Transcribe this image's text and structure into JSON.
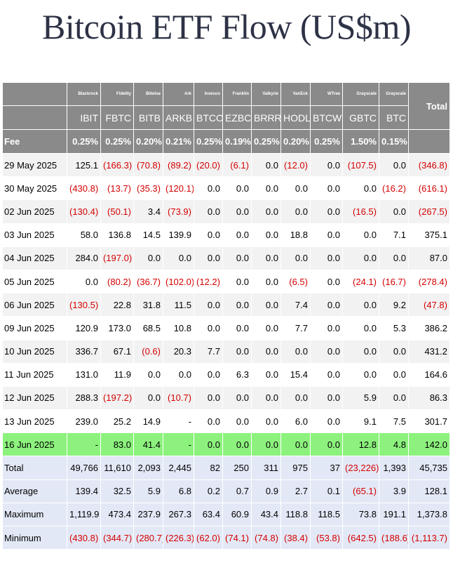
{
  "title": "Bitcoin ETF Flow (US$m)",
  "chart_data": {
    "type": "table",
    "title": "Bitcoin ETF Flow (US$m)",
    "issuers": [
      "Blackrock",
      "Fidelity",
      "Bitwise",
      "Ark",
      "Invesco",
      "Franklin",
      "Valkyrie",
      "VanEck",
      "WTree",
      "Grayscale",
      "Grayscale"
    ],
    "total_header": "Total",
    "tickers": [
      "IBIT",
      "FBTC",
      "BITB",
      "ARKB",
      "BTCO",
      "EZBC",
      "BRRR",
      "HODL",
      "BTCW",
      "GBTC",
      "BTC"
    ],
    "fee_label": "Fee",
    "fees": [
      "0.25%",
      "0.25%",
      "0.20%",
      "0.21%",
      "0.25%",
      "0.19%",
      "0.25%",
      "0.20%",
      "0.25%",
      "1.50%",
      "0.15%"
    ],
    "fee_total": "",
    "rows": [
      {
        "date": "29 May 2025",
        "values": [
          "125.1",
          "(166.3)",
          "(70.8)",
          "(89.2)",
          "(20.0)",
          "(6.1)",
          "0.0",
          "(12.0)",
          "0.0",
          "(107.5)",
          "0.0",
          "(346.8)"
        ]
      },
      {
        "date": "30 May 2025",
        "values": [
          "(430.8)",
          "(13.7)",
          "(35.3)",
          "(120.1)",
          "0.0",
          "0.0",
          "0.0",
          "0.0",
          "0.0",
          "0.0",
          "(16.2)",
          "(616.1)"
        ]
      },
      {
        "date": "02 Jun 2025",
        "values": [
          "(130.4)",
          "(50.1)",
          "3.4",
          "(73.9)",
          "0.0",
          "0.0",
          "0.0",
          "0.0",
          "0.0",
          "(16.5)",
          "0.0",
          "(267.5)"
        ]
      },
      {
        "date": "03 Jun 2025",
        "values": [
          "58.0",
          "136.8",
          "14.5",
          "139.9",
          "0.0",
          "0.0",
          "0.0",
          "18.8",
          "0.0",
          "0.0",
          "7.1",
          "375.1"
        ]
      },
      {
        "date": "04 Jun 2025",
        "values": [
          "284.0",
          "(197.0)",
          "0.0",
          "0.0",
          "0.0",
          "0.0",
          "0.0",
          "0.0",
          "0.0",
          "0.0",
          "0.0",
          "87.0"
        ]
      },
      {
        "date": "05 Jun 2025",
        "values": [
          "0.0",
          "(80.2)",
          "(36.7)",
          "(102.0)",
          "(12.2)",
          "0.0",
          "0.0",
          "(6.5)",
          "0.0",
          "(24.1)",
          "(16.7)",
          "(278.4)"
        ]
      },
      {
        "date": "06 Jun 2025",
        "values": [
          "(130.5)",
          "22.8",
          "31.8",
          "11.5",
          "0.0",
          "0.0",
          "0.0",
          "7.4",
          "0.0",
          "0.0",
          "9.2",
          "(47.8)"
        ]
      },
      {
        "date": "09 Jun 2025",
        "values": [
          "120.9",
          "173.0",
          "68.5",
          "10.8",
          "0.0",
          "0.0",
          "0.0",
          "7.7",
          "0.0",
          "0.0",
          "5.3",
          "386.2"
        ]
      },
      {
        "date": "10 Jun 2025",
        "values": [
          "336.7",
          "67.1",
          "(0.6)",
          "20.3",
          "7.7",
          "0.0",
          "0.0",
          "0.0",
          "0.0",
          "0.0",
          "0.0",
          "431.2"
        ]
      },
      {
        "date": "11 Jun 2025",
        "values": [
          "131.0",
          "11.9",
          "0.0",
          "0.0",
          "0.0",
          "6.3",
          "0.0",
          "15.4",
          "0.0",
          "0.0",
          "0.0",
          "164.6"
        ]
      },
      {
        "date": "12 Jun 2025",
        "values": [
          "288.3",
          "(197.2)",
          "0.0",
          "(10.7)",
          "0.0",
          "0.0",
          "0.0",
          "0.0",
          "0.0",
          "5.9",
          "0.0",
          "86.3"
        ]
      },
      {
        "date": "13 Jun 2025",
        "values": [
          "239.0",
          "25.2",
          "14.9",
          "-",
          "0.0",
          "0.0",
          "0.0",
          "6.0",
          "0.0",
          "9.1",
          "7.5",
          "301.7"
        ]
      },
      {
        "date": "16 Jun 2025",
        "values": [
          "-",
          "83.0",
          "41.4",
          "-",
          "0.0",
          "0.0",
          "0.0",
          "0.0",
          "0.0",
          "12.8",
          "4.8",
          "142.0"
        ],
        "highlight": true
      }
    ],
    "summary": [
      {
        "label": "Total",
        "values": [
          "49,766",
          "11,610",
          "2,093",
          "2,445",
          "82",
          "250",
          "311",
          "975",
          "37",
          "(23,226)",
          "1,393",
          "45,735"
        ]
      },
      {
        "label": "Average",
        "values": [
          "139.4",
          "32.5",
          "5.9",
          "6.8",
          "0.2",
          "0.7",
          "0.9",
          "2.7",
          "0.1",
          "(65.1)",
          "3.9",
          "128.1"
        ]
      },
      {
        "label": "Maximum",
        "values": [
          "1,119.9",
          "473.4",
          "237.9",
          "267.3",
          "63.4",
          "60.9",
          "43.4",
          "118.8",
          "118.5",
          "73.8",
          "191.1",
          "1,373.8"
        ]
      },
      {
        "label": "Minimum",
        "values": [
          "(430.8)",
          "(344.7)",
          "(280.7)",
          "(226.3)",
          "(62.0)",
          "(74.1)",
          "(74.8)",
          "(38.4)",
          "(53.8)",
          "(642.5)",
          "(188.6)",
          "(1,113.7)"
        ]
      }
    ],
    "colors": {
      "header_bg": "#8a8a8a",
      "negative": "#d40000",
      "highlight_row": "#8cf27d",
      "summary_bg": "#e3e8f6",
      "title": "#2e3246"
    }
  }
}
